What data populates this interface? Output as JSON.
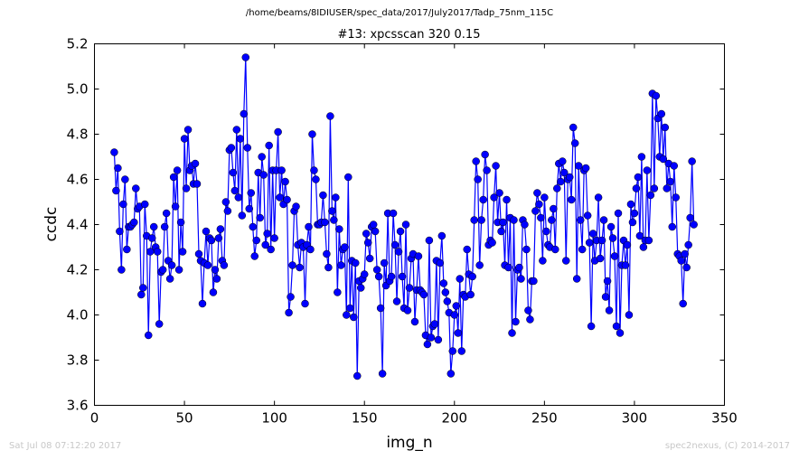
{
  "suptitle": "/home/beams/8IDIUSER/spec_data/2017/July2017/Tadp_75nm_115C",
  "footer": {
    "timestamp": "Sat Jul 08 07:12:20 2017",
    "credit": "spec2nexus, (C) 2014-2017"
  },
  "colors": {
    "series": "#0000ff"
  },
  "chart_data": {
    "type": "line",
    "title": "#13: xpcsscan 320 0.15",
    "xlabel": "img_n",
    "ylabel": "ccdc",
    "xlim": [
      0,
      350
    ],
    "ylim": [
      3.6,
      5.2
    ],
    "xticks": [
      "0",
      "50",
      "100",
      "150",
      "200",
      "250",
      "300",
      "350"
    ],
    "yticks": [
      "3.6",
      "3.8",
      "4.0",
      "4.2",
      "4.4",
      "4.6",
      "4.8",
      "5.0",
      "5.2"
    ],
    "grid": false,
    "marker": "circle",
    "series": [
      {
        "x_start": 11,
        "x_step": 1,
        "values": [
          4.72,
          4.55,
          4.65,
          4.37,
          4.2,
          4.49,
          4.6,
          4.29,
          4.39,
          4.39,
          4.4,
          4.41,
          4.56,
          4.47,
          4.48,
          4.09,
          4.12,
          4.49,
          4.35,
          3.91,
          4.28,
          4.34,
          4.39,
          4.3,
          4.28,
          3.96,
          4.19,
          4.2,
          4.39,
          4.45,
          4.24,
          4.16,
          4.22,
          4.61,
          4.48,
          4.64,
          4.2,
          4.41,
          4.28,
          4.78,
          4.56,
          4.82,
          4.64,
          4.66,
          4.58,
          4.67,
          4.58,
          4.27,
          4.24,
          4.05,
          4.23,
          4.37,
          4.22,
          4.34,
          4.33,
          4.1,
          4.2,
          4.16,
          4.34,
          4.38,
          4.24,
          4.22,
          4.5,
          4.46,
          4.73,
          4.74,
          4.63,
          4.55,
          4.82,
          4.52,
          4.78,
          4.44,
          4.89,
          5.14,
          4.74,
          4.47,
          4.54,
          4.39,
          4.26,
          4.33,
          4.63,
          4.43,
          4.7,
          4.62,
          4.31,
          4.36,
          4.75,
          4.29,
          4.64,
          4.34,
          4.64,
          4.81,
          4.52,
          4.64,
          4.49,
          4.59,
          4.51,
          4.01,
          4.08,
          4.22,
          4.46,
          4.48,
          4.31,
          4.21,
          4.32,
          4.3,
          4.05,
          4.31,
          4.39,
          4.29,
          4.8,
          4.64,
          4.6,
          4.4,
          4.4,
          4.41,
          4.53,
          4.41,
          4.27,
          4.21,
          4.88,
          4.46,
          4.42,
          4.52,
          4.1,
          4.38,
          4.22,
          4.29,
          4.3,
          4.0,
          4.61,
          4.03,
          4.24,
          3.99,
          4.23,
          3.73,
          4.15,
          4.12,
          4.16,
          4.18,
          4.36,
          4.32,
          4.25,
          4.39,
          4.4,
          4.37,
          4.2,
          4.17,
          4.03,
          3.74,
          4.23,
          4.13,
          4.45,
          4.15,
          4.17,
          4.45,
          4.31,
          4.06,
          4.28,
          4.37,
          4.17,
          4.03,
          4.4,
          4.02,
          4.12,
          4.25,
          4.27,
          3.97,
          4.11,
          4.26,
          4.11,
          4.1,
          4.09,
          3.91,
          3.87,
          4.33,
          3.9,
          3.95,
          3.96,
          4.24,
          3.89,
          4.23,
          4.35,
          4.14,
          4.1,
          4.06,
          4.01,
          3.74,
          3.84,
          4.0,
          4.04,
          3.92,
          4.16,
          3.84,
          4.09,
          4.08,
          4.29,
          4.18,
          4.09,
          4.17,
          4.42,
          4.68,
          4.6,
          4.22,
          4.42,
          4.51,
          4.71,
          4.64,
          4.31,
          4.33,
          4.32,
          4.52,
          4.66,
          4.41,
          4.54,
          4.37,
          4.41,
          4.22,
          4.51,
          4.21,
          4.43,
          3.92,
          4.42,
          3.97,
          4.2,
          4.21,
          4.16,
          4.42,
          4.4,
          4.29,
          4.02,
          3.98,
          4.15,
          4.15,
          4.46,
          4.54,
          4.49,
          4.43,
          4.24,
          4.52,
          4.37,
          4.31,
          4.3,
          4.42,
          4.47,
          4.29,
          4.56,
          4.67,
          4.59,
          4.68,
          4.63,
          4.24,
          4.6,
          4.61,
          4.51,
          4.83,
          4.76,
          4.16,
          4.66,
          4.42,
          4.29,
          4.64,
          4.65,
          4.44,
          4.32,
          3.95,
          4.36,
          4.24,
          4.33,
          4.52,
          4.25,
          4.33,
          4.42,
          4.08,
          4.15,
          4.02,
          4.39,
          4.34,
          4.26,
          3.95,
          4.45,
          3.92,
          4.22,
          4.33,
          4.22,
          4.31,
          4.0,
          4.49,
          4.41,
          4.45,
          4.56,
          4.61,
          4.35,
          4.7,
          4.3,
          4.33,
          4.64,
          4.33,
          4.53,
          4.98,
          4.56,
          4.97,
          4.87,
          4.7,
          4.89,
          4.69,
          4.83,
          4.56,
          4.67,
          4.59,
          4.39,
          4.66,
          4.52,
          4.27,
          4.26,
          4.24,
          4.05,
          4.27,
          4.21,
          4.31,
          4.43,
          4.68,
          4.4
        ]
      }
    ]
  }
}
